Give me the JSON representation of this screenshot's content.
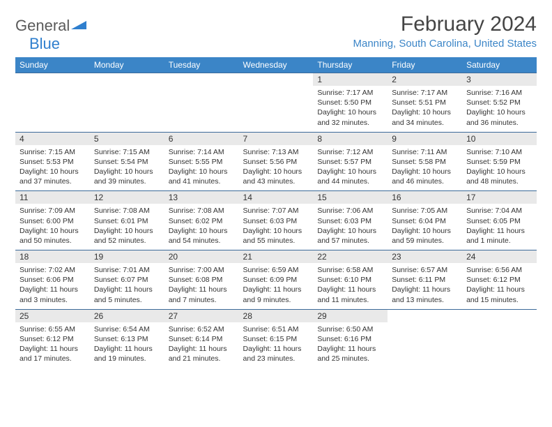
{
  "logo": {
    "part1": "General",
    "part2": "Blue"
  },
  "title": "February 2024",
  "location": "Manning, South Carolina, United States",
  "colors": {
    "header_bg": "#3b85c7",
    "header_text": "#ffffff",
    "daynum_bg": "#e9e9e9",
    "border": "#3b6a99",
    "logo_gray": "#5a5a5a",
    "logo_blue": "#2f7fce"
  },
  "weekdays": [
    "Sunday",
    "Monday",
    "Tuesday",
    "Wednesday",
    "Thursday",
    "Friday",
    "Saturday"
  ],
  "weeks": [
    [
      null,
      null,
      null,
      null,
      {
        "n": "1",
        "sr": "7:17 AM",
        "ss": "5:50 PM",
        "dl": "10 hours and 32 minutes."
      },
      {
        "n": "2",
        "sr": "7:17 AM",
        "ss": "5:51 PM",
        "dl": "10 hours and 34 minutes."
      },
      {
        "n": "3",
        "sr": "7:16 AM",
        "ss": "5:52 PM",
        "dl": "10 hours and 36 minutes."
      }
    ],
    [
      {
        "n": "4",
        "sr": "7:15 AM",
        "ss": "5:53 PM",
        "dl": "10 hours and 37 minutes."
      },
      {
        "n": "5",
        "sr": "7:15 AM",
        "ss": "5:54 PM",
        "dl": "10 hours and 39 minutes."
      },
      {
        "n": "6",
        "sr": "7:14 AM",
        "ss": "5:55 PM",
        "dl": "10 hours and 41 minutes."
      },
      {
        "n": "7",
        "sr": "7:13 AM",
        "ss": "5:56 PM",
        "dl": "10 hours and 43 minutes."
      },
      {
        "n": "8",
        "sr": "7:12 AM",
        "ss": "5:57 PM",
        "dl": "10 hours and 44 minutes."
      },
      {
        "n": "9",
        "sr": "7:11 AM",
        "ss": "5:58 PM",
        "dl": "10 hours and 46 minutes."
      },
      {
        "n": "10",
        "sr": "7:10 AM",
        "ss": "5:59 PM",
        "dl": "10 hours and 48 minutes."
      }
    ],
    [
      {
        "n": "11",
        "sr": "7:09 AM",
        "ss": "6:00 PM",
        "dl": "10 hours and 50 minutes."
      },
      {
        "n": "12",
        "sr": "7:08 AM",
        "ss": "6:01 PM",
        "dl": "10 hours and 52 minutes."
      },
      {
        "n": "13",
        "sr": "7:08 AM",
        "ss": "6:02 PM",
        "dl": "10 hours and 54 minutes."
      },
      {
        "n": "14",
        "sr": "7:07 AM",
        "ss": "6:03 PM",
        "dl": "10 hours and 55 minutes."
      },
      {
        "n": "15",
        "sr": "7:06 AM",
        "ss": "6:03 PM",
        "dl": "10 hours and 57 minutes."
      },
      {
        "n": "16",
        "sr": "7:05 AM",
        "ss": "6:04 PM",
        "dl": "10 hours and 59 minutes."
      },
      {
        "n": "17",
        "sr": "7:04 AM",
        "ss": "6:05 PM",
        "dl": "11 hours and 1 minute."
      }
    ],
    [
      {
        "n": "18",
        "sr": "7:02 AM",
        "ss": "6:06 PM",
        "dl": "11 hours and 3 minutes."
      },
      {
        "n": "19",
        "sr": "7:01 AM",
        "ss": "6:07 PM",
        "dl": "11 hours and 5 minutes."
      },
      {
        "n": "20",
        "sr": "7:00 AM",
        "ss": "6:08 PM",
        "dl": "11 hours and 7 minutes."
      },
      {
        "n": "21",
        "sr": "6:59 AM",
        "ss": "6:09 PM",
        "dl": "11 hours and 9 minutes."
      },
      {
        "n": "22",
        "sr": "6:58 AM",
        "ss": "6:10 PM",
        "dl": "11 hours and 11 minutes."
      },
      {
        "n": "23",
        "sr": "6:57 AM",
        "ss": "6:11 PM",
        "dl": "11 hours and 13 minutes."
      },
      {
        "n": "24",
        "sr": "6:56 AM",
        "ss": "6:12 PM",
        "dl": "11 hours and 15 minutes."
      }
    ],
    [
      {
        "n": "25",
        "sr": "6:55 AM",
        "ss": "6:12 PM",
        "dl": "11 hours and 17 minutes."
      },
      {
        "n": "26",
        "sr": "6:54 AM",
        "ss": "6:13 PM",
        "dl": "11 hours and 19 minutes."
      },
      {
        "n": "27",
        "sr": "6:52 AM",
        "ss": "6:14 PM",
        "dl": "11 hours and 21 minutes."
      },
      {
        "n": "28",
        "sr": "6:51 AM",
        "ss": "6:15 PM",
        "dl": "11 hours and 23 minutes."
      },
      {
        "n": "29",
        "sr": "6:50 AM",
        "ss": "6:16 PM",
        "dl": "11 hours and 25 minutes."
      },
      null,
      null
    ]
  ],
  "labels": {
    "sunrise": "Sunrise:",
    "sunset": "Sunset:",
    "daylight": "Daylight:"
  }
}
